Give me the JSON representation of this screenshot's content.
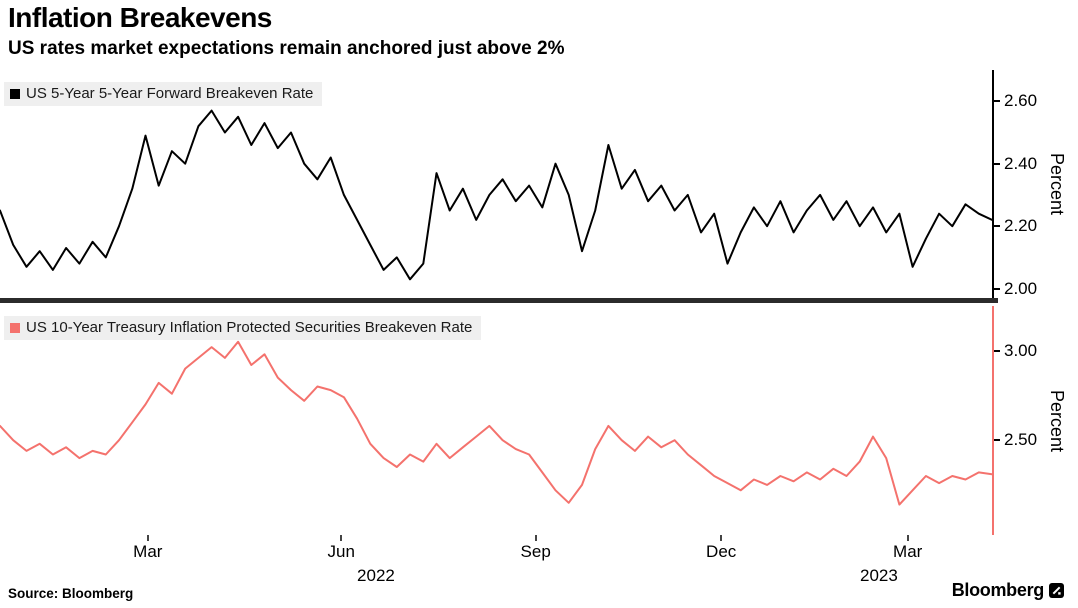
{
  "header": {
    "title": "Inflation Breakevens",
    "subtitle": "US rates market expectations remain anchored just above 2%"
  },
  "footer": {
    "source": "Source: Bloomberg",
    "brand": "Bloomberg"
  },
  "colors": {
    "top_line": "#000000",
    "bottom_line": "#f4726d",
    "legend_background": "#efefef",
    "separator": "#2b2b2b"
  },
  "chart_data": [
    {
      "type": "line",
      "title": "US 5-Year 5-Year Forward Breakeven Rate",
      "ylabel": "Percent",
      "ylim": [
        1.97,
        2.7
      ],
      "grid": false,
      "legend_position": "top-left",
      "yticks": [
        {
          "label": "2.00",
          "value": 2.0
        },
        {
          "label": "2.20",
          "value": 2.2
        },
        {
          "label": "2.40",
          "value": 2.4
        },
        {
          "label": "2.60",
          "value": 2.6
        }
      ],
      "axis_color": "#000000",
      "series": [
        {
          "name": "US 5-Year 5-Year Forward Breakeven Rate",
          "color": "#000000",
          "values": [
            2.25,
            2.14,
            2.07,
            2.12,
            2.06,
            2.13,
            2.08,
            2.15,
            2.1,
            2.2,
            2.32,
            2.49,
            2.33,
            2.44,
            2.4,
            2.52,
            2.57,
            2.5,
            2.55,
            2.46,
            2.53,
            2.45,
            2.5,
            2.4,
            2.35,
            2.42,
            2.3,
            2.22,
            2.14,
            2.06,
            2.1,
            2.03,
            2.08,
            2.37,
            2.25,
            2.32,
            2.22,
            2.3,
            2.35,
            2.28,
            2.33,
            2.26,
            2.4,
            2.3,
            2.12,
            2.25,
            2.46,
            2.32,
            2.38,
            2.28,
            2.33,
            2.25,
            2.3,
            2.18,
            2.24,
            2.08,
            2.18,
            2.26,
            2.2,
            2.28,
            2.18,
            2.25,
            2.3,
            2.22,
            2.28,
            2.2,
            2.26,
            2.18,
            2.24,
            2.07,
            2.16,
            2.24,
            2.2,
            2.27,
            2.24,
            2.22
          ]
        }
      ]
    },
    {
      "type": "line",
      "title": "US 10-Year Treasury Inflation Protected Securities Breakeven Rate",
      "ylabel": "Percent",
      "ylim": [
        1.97,
        3.25
      ],
      "grid": false,
      "legend_position": "top-left",
      "yticks": [
        {
          "label": "2.50",
          "value": 2.5
        },
        {
          "label": "3.00",
          "value": 3.0
        }
      ],
      "axis_color": "#f4726d",
      "series": [
        {
          "name": "US 10-Year Treasury Inflation Protected Securities Breakeven Rate",
          "color": "#f4726d",
          "values": [
            2.58,
            2.5,
            2.44,
            2.48,
            2.42,
            2.46,
            2.4,
            2.44,
            2.42,
            2.5,
            2.6,
            2.7,
            2.82,
            2.76,
            2.9,
            2.96,
            3.02,
            2.96,
            3.05,
            2.92,
            2.98,
            2.85,
            2.78,
            2.72,
            2.8,
            2.78,
            2.74,
            2.62,
            2.48,
            2.4,
            2.35,
            2.42,
            2.38,
            2.48,
            2.4,
            2.46,
            2.52,
            2.58,
            2.5,
            2.45,
            2.42,
            2.32,
            2.22,
            2.15,
            2.25,
            2.45,
            2.58,
            2.5,
            2.44,
            2.52,
            2.46,
            2.5,
            2.42,
            2.36,
            2.3,
            2.26,
            2.22,
            2.28,
            2.25,
            2.3,
            2.27,
            2.32,
            2.28,
            2.34,
            2.3,
            2.38,
            2.52,
            2.4,
            2.14,
            2.22,
            2.3,
            2.26,
            2.3,
            2.28,
            2.32,
            2.31
          ]
        }
      ]
    }
  ],
  "x_axis": {
    "month_ticks": [
      {
        "label": "Mar",
        "pos": 0.149
      },
      {
        "label": "Jun",
        "pos": 0.344
      },
      {
        "label": "Sep",
        "pos": 0.54
      },
      {
        "label": "Dec",
        "pos": 0.727
      },
      {
        "label": "Mar",
        "pos": 0.915
      }
    ],
    "year_labels": [
      {
        "label": "2022",
        "pos": 0.379
      },
      {
        "label": "2023",
        "pos": 0.886
      }
    ]
  }
}
